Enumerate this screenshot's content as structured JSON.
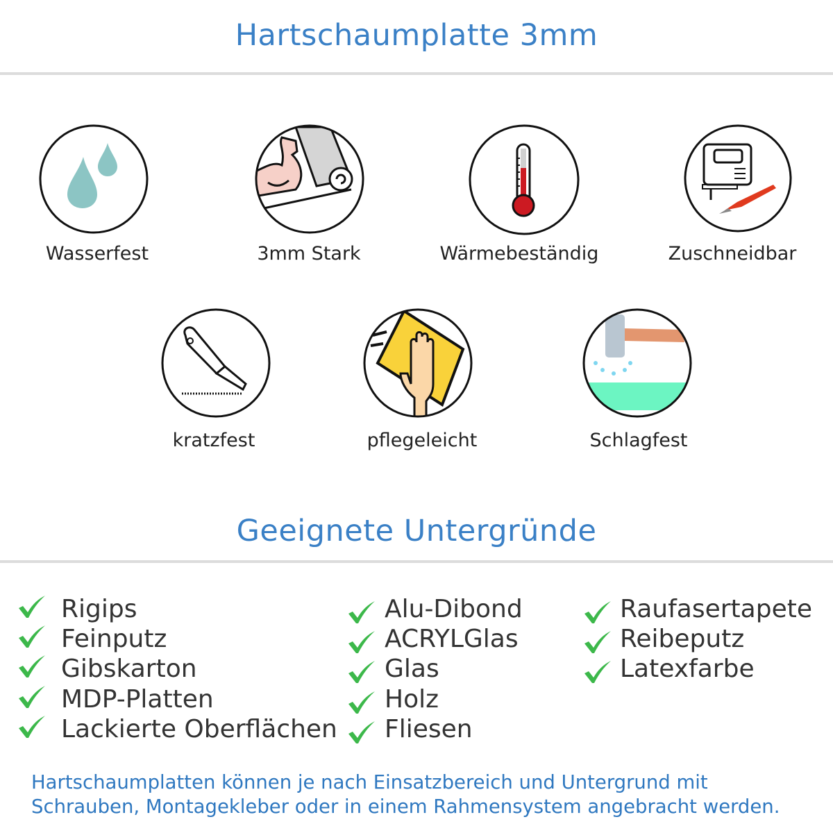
{
  "header": {
    "title": "Hartschaumplatte 3mm"
  },
  "features": [
    {
      "label": "Wasserfest",
      "icon": "water-drops-icon"
    },
    {
      "label": "3mm Stark",
      "icon": "strong-arm-icon"
    },
    {
      "label": "Wärmebeständig",
      "icon": "thermometer-icon"
    },
    {
      "label": "Zuschneidbar",
      "icon": "jigsaw-knife-icon"
    },
    {
      "label": "kratzfest",
      "icon": "cutter-knife-icon"
    },
    {
      "label": "pflegeleicht",
      "icon": "cleaning-hand-icon"
    },
    {
      "label": "Schlagfest",
      "icon": "hammer-icon"
    }
  ],
  "surfaces": {
    "title": "Geeignete Untergründe",
    "check_color": "#3cb84a",
    "columns": [
      [
        "Rigips",
        "Feinputz",
        "Gibskarton",
        "MDP-Platten",
        "Lackierte Oberflächen"
      ],
      [
        "Alu-Dibond",
        "ACRYLGlas",
        "Glas",
        "Holz",
        "Fliesen"
      ],
      [
        "Raufasertapete",
        "Reibeputz",
        "Latexfarbe"
      ]
    ]
  },
  "note": {
    "line1": "Hartschaumplatten können je nach Einsatzbereich und Untergrund mit",
    "line2": "Schrauben, Montagekleber oder in einem Rahmensystem angebracht werden."
  },
  "colors": {
    "accent": "#3a80c6",
    "note": "#2f78c0",
    "rule": "#dcdcdc"
  }
}
